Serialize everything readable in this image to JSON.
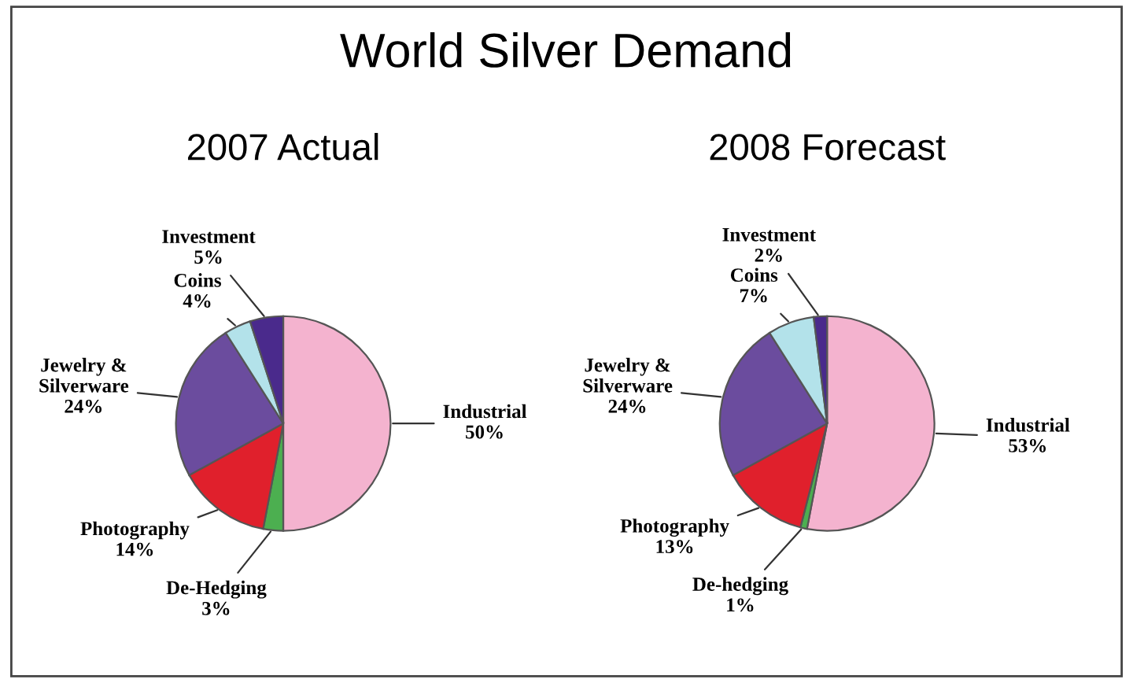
{
  "chart_data": [
    {
      "type": "pie",
      "title": "2007 Actual",
      "annotations": [
        "World Silver Demand"
      ],
      "categories": [
        "Industrial",
        "De-Hedging",
        "Photography",
        "Jewelry & Silverware",
        "Coins",
        "Investment"
      ],
      "values": [
        50,
        3,
        14,
        24,
        4,
        5
      ],
      "colors": [
        "#f4b3cf",
        "#4caf50",
        "#e0202c",
        "#6b4c9e",
        "#b3e2ea",
        "#4a2a8c"
      ],
      "value_labels": [
        "50%",
        "3%",
        "14%",
        "24%",
        "4%",
        "5%"
      ]
    },
    {
      "type": "pie",
      "title": "2008 Forecast",
      "categories": [
        "Industrial",
        "De-hedging",
        "Photography",
        "Jewelry & Silverware",
        "Coins",
        "Investment"
      ],
      "values": [
        53,
        1,
        13,
        24,
        7,
        2
      ],
      "colors": [
        "#f4b3cf",
        "#4caf50",
        "#e0202c",
        "#6b4c9e",
        "#b3e2ea",
        "#4a2a8c"
      ],
      "value_labels": [
        "53%",
        "1%",
        "13%",
        "24%",
        "7%",
        "2%"
      ]
    }
  ]
}
